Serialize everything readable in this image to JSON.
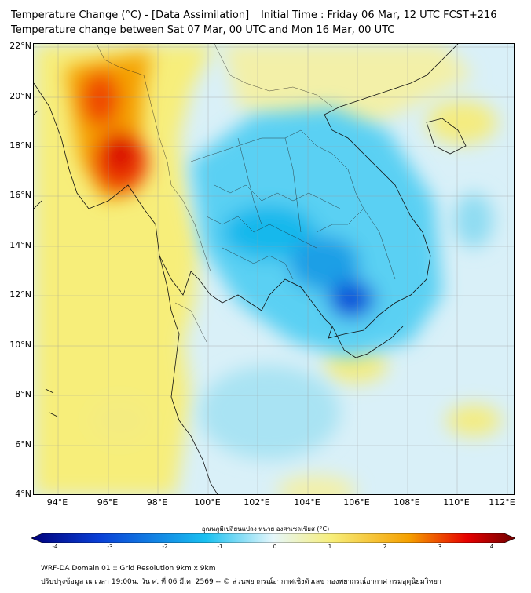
{
  "header": {
    "title_line1": "Temperature Change (°C) - [Data Assimilation] _ Initial Time : Friday 06 Mar, 12 UTC FCST+216",
    "title_line2": "Temperature change between Sat 07 Mar, 00 UTC and Mon 16 Mar, 00 UTC"
  },
  "axes": {
    "lat_labels": [
      "22°N",
      "20°N",
      "18°N",
      "16°N",
      "14°N",
      "12°N",
      "10°N",
      "8°N",
      "6°N",
      "4°N"
    ],
    "lon_labels": [
      "94°E",
      "96°E",
      "98°E",
      "100°E",
      "102°E",
      "104°E",
      "106°E",
      "108°E",
      "110°E",
      "112°E"
    ]
  },
  "colorbar": {
    "title": "อุณหภูมิเปลี่ยนแปลง หน่วย องศาเซลเซียส (°C)",
    "ticks": [
      "-4",
      "-3",
      "-2",
      "-1",
      "0",
      "1",
      "2",
      "3",
      "4"
    ],
    "colors": {
      "deep_blue": "#00007a",
      "blue": "#0a3fd6",
      "sky": "#19c0f0",
      "pale": "#e6f7fb",
      "yellow": "#f7ee7a",
      "orange": "#f5a000",
      "red": "#e60000",
      "dark_red": "#6e0000"
    }
  },
  "footer": {
    "line1": "WRF-DA Domain 01 :: Grid Resolution 9km x 9km",
    "line2": "ปรับปรุงข้อมูล ณ เวลา 19:00น. วัน ศ. ที่ 06 มี.ค. 2569 -- © ส่วนพยากรณ์อากาศเชิงตัวเลข กองพยากรณ์อากาศ กรมอุตุนิยมวิทยา"
  }
}
